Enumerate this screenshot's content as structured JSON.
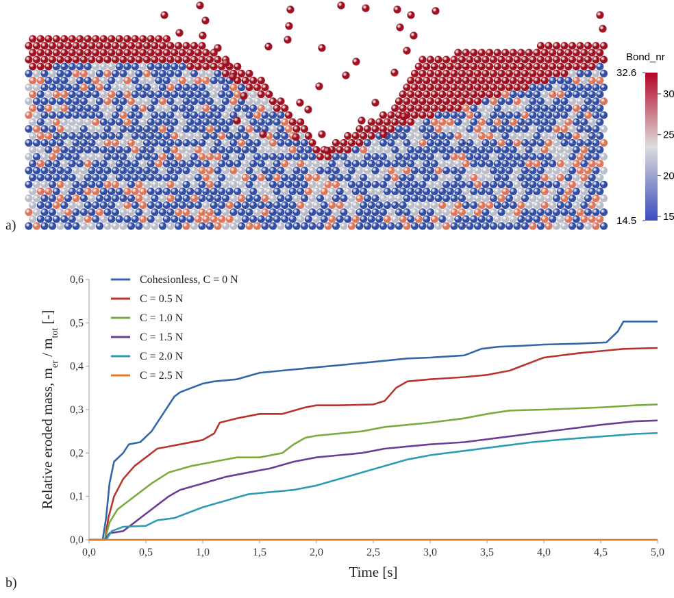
{
  "panels": {
    "a": "a)",
    "b": "b)"
  },
  "particles": {
    "colorbar": {
      "title": "Bond_nr",
      "min_label": "14.5",
      "max_label": "32.6",
      "min": 14.5,
      "max": 32.6,
      "ticks": [
        15,
        20,
        25,
        30
      ],
      "colors": {
        "low": "#3b4cc0",
        "mid": "#dddddd",
        "high": "#b40426",
        "eroded": "#9b0d1c"
      }
    }
  },
  "chart_data": {
    "type": "line",
    "xlabel": "Time [s]",
    "ylabel": "Relative eroded  mass,  m",
    "ylabel_sub1": "er",
    "ylabel_mid": " / m",
    "ylabel_sub2": "tot",
    "ylabel_end": "  [-]",
    "xlim": [
      0,
      5
    ],
    "ylim": [
      0,
      0.6
    ],
    "xticks": [
      0,
      0.5,
      1,
      1.5,
      2,
      2.5,
      3,
      3.5,
      4,
      4.5,
      5
    ],
    "xtick_labels": [
      "0,0",
      "0,5",
      "1,0",
      "1,5",
      "2,0",
      "2,5",
      "3,0",
      "3,5",
      "4,0",
      "4,5",
      "5,0"
    ],
    "yticks": [
      0,
      0.1,
      0.2,
      0.3,
      0.4,
      0.5,
      0.6
    ],
    "ytick_labels": [
      "0,0",
      "0,1",
      "0,2",
      "0,3",
      "0,4",
      "0,5",
      "0,6"
    ],
    "legend_position": "top-left",
    "series": [
      {
        "name": "Cohesionless, C = 0 N",
        "color": "#3366a8",
        "points": [
          [
            0,
            0
          ],
          [
            0.12,
            0
          ],
          [
            0.15,
            0.05
          ],
          [
            0.18,
            0.13
          ],
          [
            0.22,
            0.18
          ],
          [
            0.3,
            0.2
          ],
          [
            0.35,
            0.22
          ],
          [
            0.45,
            0.225
          ],
          [
            0.55,
            0.25
          ],
          [
            0.65,
            0.29
          ],
          [
            0.75,
            0.33
          ],
          [
            0.8,
            0.34
          ],
          [
            0.9,
            0.35
          ],
          [
            1.0,
            0.36
          ],
          [
            1.1,
            0.365
          ],
          [
            1.3,
            0.37
          ],
          [
            1.5,
            0.385
          ],
          [
            1.7,
            0.39
          ],
          [
            1.9,
            0.395
          ],
          [
            2.1,
            0.4
          ],
          [
            2.3,
            0.405
          ],
          [
            2.5,
            0.41
          ],
          [
            2.8,
            0.418
          ],
          [
            3.0,
            0.42
          ],
          [
            3.3,
            0.425
          ],
          [
            3.45,
            0.44
          ],
          [
            3.6,
            0.445
          ],
          [
            3.8,
            0.447
          ],
          [
            4.0,
            0.45
          ],
          [
            4.3,
            0.452
          ],
          [
            4.55,
            0.455
          ],
          [
            4.65,
            0.48
          ],
          [
            4.7,
            0.503
          ],
          [
            5.0,
            0.503
          ]
        ]
      },
      {
        "name": "C = 0.5 N",
        "color": "#b8342f",
        "points": [
          [
            0,
            0
          ],
          [
            0.14,
            0
          ],
          [
            0.17,
            0.05
          ],
          [
            0.22,
            0.1
          ],
          [
            0.3,
            0.14
          ],
          [
            0.4,
            0.17
          ],
          [
            0.5,
            0.19
          ],
          [
            0.6,
            0.21
          ],
          [
            0.8,
            0.22
          ],
          [
            1.0,
            0.23
          ],
          [
            1.1,
            0.245
          ],
          [
            1.15,
            0.27
          ],
          [
            1.3,
            0.28
          ],
          [
            1.5,
            0.29
          ],
          [
            1.7,
            0.29
          ],
          [
            1.9,
            0.305
          ],
          [
            2.0,
            0.31
          ],
          [
            2.2,
            0.31
          ],
          [
            2.5,
            0.312
          ],
          [
            2.6,
            0.32
          ],
          [
            2.7,
            0.35
          ],
          [
            2.8,
            0.365
          ],
          [
            3.0,
            0.37
          ],
          [
            3.3,
            0.375
          ],
          [
            3.5,
            0.38
          ],
          [
            3.7,
            0.39
          ],
          [
            3.9,
            0.41
          ],
          [
            4.0,
            0.42
          ],
          [
            4.3,
            0.43
          ],
          [
            4.5,
            0.435
          ],
          [
            4.7,
            0.44
          ],
          [
            5.0,
            0.442
          ]
        ]
      },
      {
        "name": "C = 1.0 N",
        "color": "#7aab3d",
        "points": [
          [
            0,
            0
          ],
          [
            0.14,
            0
          ],
          [
            0.18,
            0.04
          ],
          [
            0.25,
            0.07
          ],
          [
            0.35,
            0.09
          ],
          [
            0.45,
            0.11
          ],
          [
            0.55,
            0.13
          ],
          [
            0.7,
            0.155
          ],
          [
            0.9,
            0.17
          ],
          [
            1.1,
            0.18
          ],
          [
            1.3,
            0.19
          ],
          [
            1.5,
            0.19
          ],
          [
            1.7,
            0.2
          ],
          [
            1.8,
            0.22
          ],
          [
            1.9,
            0.235
          ],
          [
            2.0,
            0.24
          ],
          [
            2.2,
            0.245
          ],
          [
            2.4,
            0.25
          ],
          [
            2.6,
            0.26
          ],
          [
            2.8,
            0.265
          ],
          [
            3.0,
            0.27
          ],
          [
            3.3,
            0.28
          ],
          [
            3.5,
            0.29
          ],
          [
            3.7,
            0.298
          ],
          [
            4.0,
            0.3
          ],
          [
            4.5,
            0.305
          ],
          [
            4.8,
            0.31
          ],
          [
            5.0,
            0.312
          ]
        ]
      },
      {
        "name": "C = 1.5 N",
        "color": "#6a3d95",
        "points": [
          [
            0,
            0
          ],
          [
            0.14,
            0
          ],
          [
            0.18,
            0.015
          ],
          [
            0.3,
            0.02
          ],
          [
            0.4,
            0.04
          ],
          [
            0.5,
            0.06
          ],
          [
            0.6,
            0.08
          ],
          [
            0.7,
            0.1
          ],
          [
            0.8,
            0.115
          ],
          [
            1.0,
            0.13
          ],
          [
            1.2,
            0.145
          ],
          [
            1.4,
            0.155
          ],
          [
            1.6,
            0.165
          ],
          [
            1.8,
            0.18
          ],
          [
            2.0,
            0.19
          ],
          [
            2.2,
            0.195
          ],
          [
            2.4,
            0.2
          ],
          [
            2.6,
            0.21
          ],
          [
            2.8,
            0.215
          ],
          [
            3.0,
            0.22
          ],
          [
            3.3,
            0.225
          ],
          [
            3.6,
            0.235
          ],
          [
            3.9,
            0.245
          ],
          [
            4.2,
            0.255
          ],
          [
            4.5,
            0.265
          ],
          [
            4.8,
            0.273
          ],
          [
            5.0,
            0.275
          ]
        ]
      },
      {
        "name": "C = 2.0 N",
        "color": "#2e9bb5",
        "points": [
          [
            0,
            0
          ],
          [
            0.15,
            0
          ],
          [
            0.2,
            0.02
          ],
          [
            0.25,
            0.025
          ],
          [
            0.3,
            0.03
          ],
          [
            0.5,
            0.032
          ],
          [
            0.6,
            0.045
          ],
          [
            0.75,
            0.05
          ],
          [
            0.85,
            0.06
          ],
          [
            1.0,
            0.075
          ],
          [
            1.2,
            0.09
          ],
          [
            1.4,
            0.105
          ],
          [
            1.6,
            0.11
          ],
          [
            1.8,
            0.115
          ],
          [
            2.0,
            0.125
          ],
          [
            2.2,
            0.14
          ],
          [
            2.4,
            0.155
          ],
          [
            2.6,
            0.17
          ],
          [
            2.8,
            0.185
          ],
          [
            3.0,
            0.195
          ],
          [
            3.3,
            0.205
          ],
          [
            3.6,
            0.215
          ],
          [
            3.9,
            0.225
          ],
          [
            4.2,
            0.232
          ],
          [
            4.5,
            0.238
          ],
          [
            4.8,
            0.244
          ],
          [
            5.0,
            0.246
          ]
        ]
      },
      {
        "name": "C = 2.5 N",
        "color": "#e07b2a",
        "points": [
          [
            0,
            0
          ],
          [
            5.0,
            0
          ]
        ]
      }
    ]
  }
}
